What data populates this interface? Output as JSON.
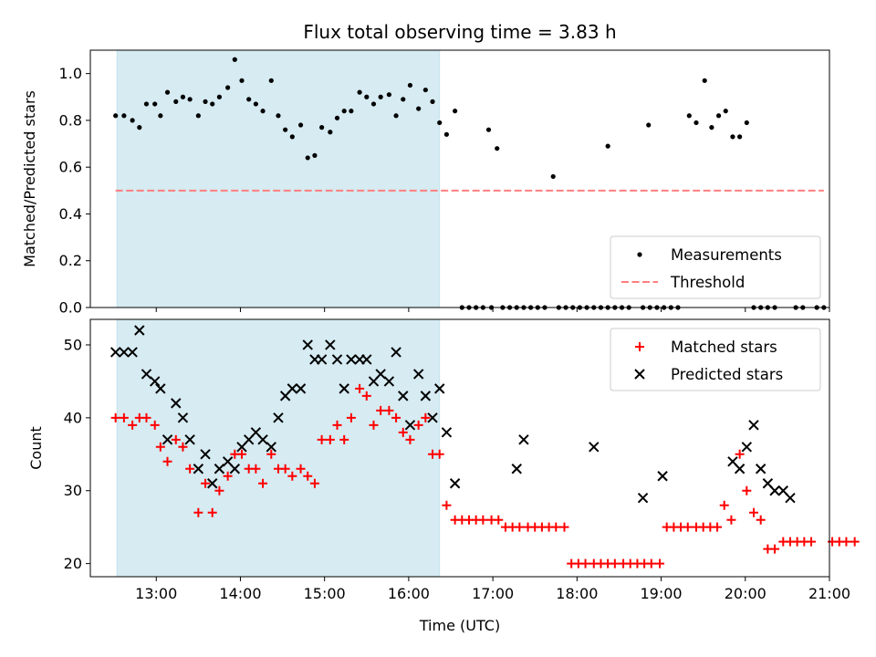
{
  "chart_data": [
    {
      "type": "scatter",
      "title": "Flux total observing time = 3.83 h",
      "xlabel": "",
      "ylabel": "Matched/Predicted stars",
      "x_axis": "time (UTC)",
      "xlim": [
        "12:13",
        "21:00"
      ],
      "ylim": [
        0,
        1.1
      ],
      "yticks": [
        "0.0",
        "0.2",
        "0.4",
        "0.6",
        "0.8",
        "1.0"
      ],
      "legend_placement": "lower-right",
      "shaded_interval": [
        "12:32",
        "16:22"
      ],
      "series": [
        {
          "name": "Measurements",
          "marker": "dot",
          "color": "#000000",
          "points": [
            [
              "12:31",
              0.82
            ],
            [
              "12:37",
              0.82
            ],
            [
              "12:43",
              0.8
            ],
            [
              "12:48",
              0.77
            ],
            [
              "12:53",
              0.87
            ],
            [
              "12:59",
              0.87
            ],
            [
              "13:03",
              0.82
            ],
            [
              "13:08",
              0.92
            ],
            [
              "13:14",
              0.88
            ],
            [
              "13:19",
              0.9
            ],
            [
              "13:24",
              0.89
            ],
            [
              "13:30",
              0.82
            ],
            [
              "13:35",
              0.88
            ],
            [
              "13:40",
              0.87
            ],
            [
              "13:45",
              0.9
            ],
            [
              "13:51",
              0.94
            ],
            [
              "13:56",
              1.06
            ],
            [
              "14:01",
              0.97
            ],
            [
              "14:06",
              0.89
            ],
            [
              "14:11",
              0.87
            ],
            [
              "14:16",
              0.84
            ],
            [
              "14:22",
              0.97
            ],
            [
              "14:27",
              0.82
            ],
            [
              "14:32",
              0.76
            ],
            [
              "14:37",
              0.73
            ],
            [
              "14:43",
              0.78
            ],
            [
              "14:48",
              0.64
            ],
            [
              "14:53",
              0.65
            ],
            [
              "14:58",
              0.77
            ],
            [
              "15:04",
              0.75
            ],
            [
              "15:09",
              0.81
            ],
            [
              "15:14",
              0.84
            ],
            [
              "15:19",
              0.84
            ],
            [
              "15:25",
              0.92
            ],
            [
              "15:30",
              0.9
            ],
            [
              "15:35",
              0.87
            ],
            [
              "15:40",
              0.9
            ],
            [
              "15:46",
              0.91
            ],
            [
              "15:51",
              0.82
            ],
            [
              "15:56",
              0.89
            ],
            [
              "16:01",
              0.95
            ],
            [
              "16:07",
              0.85
            ],
            [
              "16:12",
              0.93
            ],
            [
              "16:17",
              0.88
            ],
            [
              "16:22",
              0.79
            ],
            [
              "16:27",
              0.74
            ],
            [
              "16:33",
              0.84
            ],
            [
              "16:38",
              0.0
            ],
            [
              "16:43",
              0.0
            ],
            [
              "16:48",
              0.0
            ],
            [
              "16:53",
              0.0
            ],
            [
              "16:59",
              0.0
            ],
            [
              "16:57",
              0.76
            ],
            [
              "17:03",
              0.68
            ],
            [
              "17:07",
              0.0
            ],
            [
              "17:12",
              0.0
            ],
            [
              "17:17",
              0.0
            ],
            [
              "17:22",
              0.0
            ],
            [
              "17:27",
              0.0
            ],
            [
              "17:32",
              0.0
            ],
            [
              "17:37",
              0.0
            ],
            [
              "17:43",
              0.56
            ],
            [
              "17:47",
              0.0
            ],
            [
              "17:52",
              0.0
            ],
            [
              "17:57",
              0.0
            ],
            [
              "18:02",
              0.0
            ],
            [
              "18:07",
              0.0
            ],
            [
              "18:12",
              0.0
            ],
            [
              "18:17",
              0.0
            ],
            [
              "18:22",
              0.0
            ],
            [
              "18:22",
              0.69
            ],
            [
              "18:27",
              0.0
            ],
            [
              "18:32",
              0.0
            ],
            [
              "18:37",
              0.0
            ],
            [
              "18:47",
              0.0
            ],
            [
              "18:52",
              0.0
            ],
            [
              "18:57",
              0.0
            ],
            [
              "18:51",
              0.78
            ],
            [
              "19:02",
              0.0
            ],
            [
              "19:07",
              0.0
            ],
            [
              "19:12",
              0.0
            ],
            [
              "19:20",
              0.82
            ],
            [
              "19:25",
              0.79
            ],
            [
              "19:31",
              0.97
            ],
            [
              "19:36",
              0.77
            ],
            [
              "19:41",
              0.82
            ],
            [
              "19:46",
              0.84
            ],
            [
              "19:51",
              0.73
            ],
            [
              "19:56",
              0.73
            ],
            [
              "20:01",
              0.79
            ],
            [
              "20:06",
              0.0
            ],
            [
              "20:11",
              0.0
            ],
            [
              "20:16",
              0.0
            ],
            [
              "20:21",
              0.0
            ],
            [
              "20:36",
              0.0
            ],
            [
              "20:41",
              0.0
            ],
            [
              "20:51",
              0.0
            ],
            [
              "20:56",
              0.0
            ]
          ]
        },
        {
          "name": "Threshold",
          "type": "line",
          "style": "dashed",
          "color": "#ff7f7f",
          "points": [
            [
              "12:31",
              0.5
            ],
            [
              "20:56",
              0.5
            ]
          ]
        }
      ]
    },
    {
      "type": "scatter",
      "title": "",
      "xlabel": "Time (UTC)",
      "ylabel": "Count",
      "xlim": [
        "12:13",
        "21:00"
      ],
      "xticks": [
        "13:00",
        "14:00",
        "15:00",
        "16:00",
        "17:00",
        "18:00",
        "19:00",
        "20:00",
        "21:00"
      ],
      "ylim": [
        18.2,
        53.5
      ],
      "yticks": [
        "20",
        "30",
        "40",
        "50"
      ],
      "legend_placement": "upper-right",
      "shaded_interval": [
        "12:32",
        "16:22"
      ],
      "series": [
        {
          "name": "Matched stars",
          "marker": "plus",
          "color": "#ff0000",
          "points": [
            [
              "12:31",
              40
            ],
            [
              "12:37",
              40
            ],
            [
              "12:43",
              39
            ],
            [
              "12:48",
              40
            ],
            [
              "12:53",
              40
            ],
            [
              "12:59",
              39
            ],
            [
              "13:03",
              36
            ],
            [
              "13:08",
              34
            ],
            [
              "13:14",
              37
            ],
            [
              "13:19",
              36
            ],
            [
              "13:24",
              33
            ],
            [
              "13:30",
              27
            ],
            [
              "13:35",
              31
            ],
            [
              "13:40",
              27
            ],
            [
              "13:45",
              30
            ],
            [
              "13:51",
              32
            ],
            [
              "13:56",
              35
            ],
            [
              "14:01",
              35
            ],
            [
              "14:06",
              33
            ],
            [
              "14:11",
              33
            ],
            [
              "14:16",
              31
            ],
            [
              "14:22",
              35
            ],
            [
              "14:27",
              33
            ],
            [
              "14:32",
              33
            ],
            [
              "14:37",
              32
            ],
            [
              "14:43",
              33
            ],
            [
              "14:48",
              32
            ],
            [
              "14:53",
              31
            ],
            [
              "14:58",
              37
            ],
            [
              "15:04",
              37
            ],
            [
              "15:09",
              39
            ],
            [
              "15:14",
              37
            ],
            [
              "15:19",
              40
            ],
            [
              "15:25",
              44
            ],
            [
              "15:30",
              43
            ],
            [
              "15:35",
              39
            ],
            [
              "15:40",
              41
            ],
            [
              "15:46",
              41
            ],
            [
              "15:51",
              40
            ],
            [
              "15:56",
              38
            ],
            [
              "16:01",
              37
            ],
            [
              "16:07",
              39
            ],
            [
              "16:12",
              40
            ],
            [
              "16:17",
              35
            ],
            [
              "16:22",
              35
            ],
            [
              "16:27",
              28
            ],
            [
              "16:33",
              26
            ],
            [
              "16:38",
              26
            ],
            [
              "16:43",
              26
            ],
            [
              "16:48",
              26
            ],
            [
              "16:53",
              26
            ],
            [
              "16:59",
              26
            ],
            [
              "17:04",
              26
            ],
            [
              "17:09",
              25
            ],
            [
              "17:14",
              25
            ],
            [
              "17:19",
              25
            ],
            [
              "17:25",
              25
            ],
            [
              "17:30",
              25
            ],
            [
              "17:35",
              25
            ],
            [
              "17:40",
              25
            ],
            [
              "17:45",
              25
            ],
            [
              "17:51",
              25
            ],
            [
              "17:56",
              20
            ],
            [
              "18:01",
              20
            ],
            [
              "18:06",
              20
            ],
            [
              "18:12",
              20
            ],
            [
              "18:17",
              20
            ],
            [
              "18:22",
              20
            ],
            [
              "18:27",
              20
            ],
            [
              "18:33",
              20
            ],
            [
              "18:38",
              20
            ],
            [
              "18:43",
              20
            ],
            [
              "18:48",
              20
            ],
            [
              "18:53",
              20
            ],
            [
              "18:59",
              20
            ],
            [
              "19:04",
              25
            ],
            [
              "19:09",
              25
            ],
            [
              "19:14",
              25
            ],
            [
              "19:19",
              25
            ],
            [
              "19:25",
              25
            ],
            [
              "19:30",
              25
            ],
            [
              "19:35",
              25
            ],
            [
              "19:40",
              25
            ],
            [
              "19:45",
              28
            ],
            [
              "19:50",
              26
            ],
            [
              "19:56",
              35
            ],
            [
              "20:01",
              30
            ],
            [
              "20:06",
              27
            ],
            [
              "20:11",
              26
            ],
            [
              "20:16",
              22
            ],
            [
              "20:21",
              22
            ],
            [
              "20:27",
              23
            ],
            [
              "20:32",
              23
            ],
            [
              "20:37",
              23
            ],
            [
              "20:42",
              23
            ],
            [
              "20:47",
              23
            ],
            [
              "21:02",
              23
            ],
            [
              "21:07",
              23
            ],
            [
              "21:12",
              23
            ],
            [
              "21:18",
              23
            ]
          ]
        },
        {
          "name": "Predicted stars",
          "marker": "x",
          "color": "#000000",
          "points": [
            [
              "12:31",
              49
            ],
            [
              "12:37",
              49
            ],
            [
              "12:43",
              49
            ],
            [
              "12:48",
              52
            ],
            [
              "12:53",
              46
            ],
            [
              "12:59",
              45
            ],
            [
              "13:03",
              44
            ],
            [
              "13:08",
              37
            ],
            [
              "13:14",
              42
            ],
            [
              "13:19",
              40
            ],
            [
              "13:24",
              37
            ],
            [
              "13:30",
              33
            ],
            [
              "13:35",
              35
            ],
            [
              "13:40",
              31
            ],
            [
              "13:45",
              33
            ],
            [
              "13:51",
              34
            ],
            [
              "13:56",
              33
            ],
            [
              "14:01",
              36
            ],
            [
              "14:06",
              37
            ],
            [
              "14:11",
              38
            ],
            [
              "14:16",
              37
            ],
            [
              "14:22",
              36
            ],
            [
              "14:27",
              40
            ],
            [
              "14:32",
              43
            ],
            [
              "14:37",
              44
            ],
            [
              "14:43",
              44
            ],
            [
              "14:48",
              50
            ],
            [
              "14:53",
              48
            ],
            [
              "14:58",
              48
            ],
            [
              "15:04",
              50
            ],
            [
              "15:09",
              48
            ],
            [
              "15:14",
              44
            ],
            [
              "15:19",
              48
            ],
            [
              "15:25",
              48
            ],
            [
              "15:30",
              48
            ],
            [
              "15:35",
              45
            ],
            [
              "15:40",
              46
            ],
            [
              "15:46",
              45
            ],
            [
              "15:51",
              49
            ],
            [
              "15:56",
              43
            ],
            [
              "16:01",
              39
            ],
            [
              "16:07",
              46
            ],
            [
              "16:12",
              43
            ],
            [
              "16:17",
              40
            ],
            [
              "16:22",
              44
            ],
            [
              "16:27",
              38
            ],
            [
              "16:33",
              31
            ],
            [
              "17:17",
              33
            ],
            [
              "17:22",
              37
            ],
            [
              "18:12",
              36
            ],
            [
              "18:47",
              29
            ],
            [
              "19:01",
              32
            ],
            [
              "19:51",
              34
            ],
            [
              "19:56",
              33
            ],
            [
              "20:01",
              36
            ],
            [
              "20:06",
              39
            ],
            [
              "20:11",
              33
            ],
            [
              "20:16",
              31
            ],
            [
              "20:21",
              30
            ],
            [
              "20:27",
              30
            ],
            [
              "20:32",
              29
            ]
          ]
        }
      ]
    }
  ]
}
